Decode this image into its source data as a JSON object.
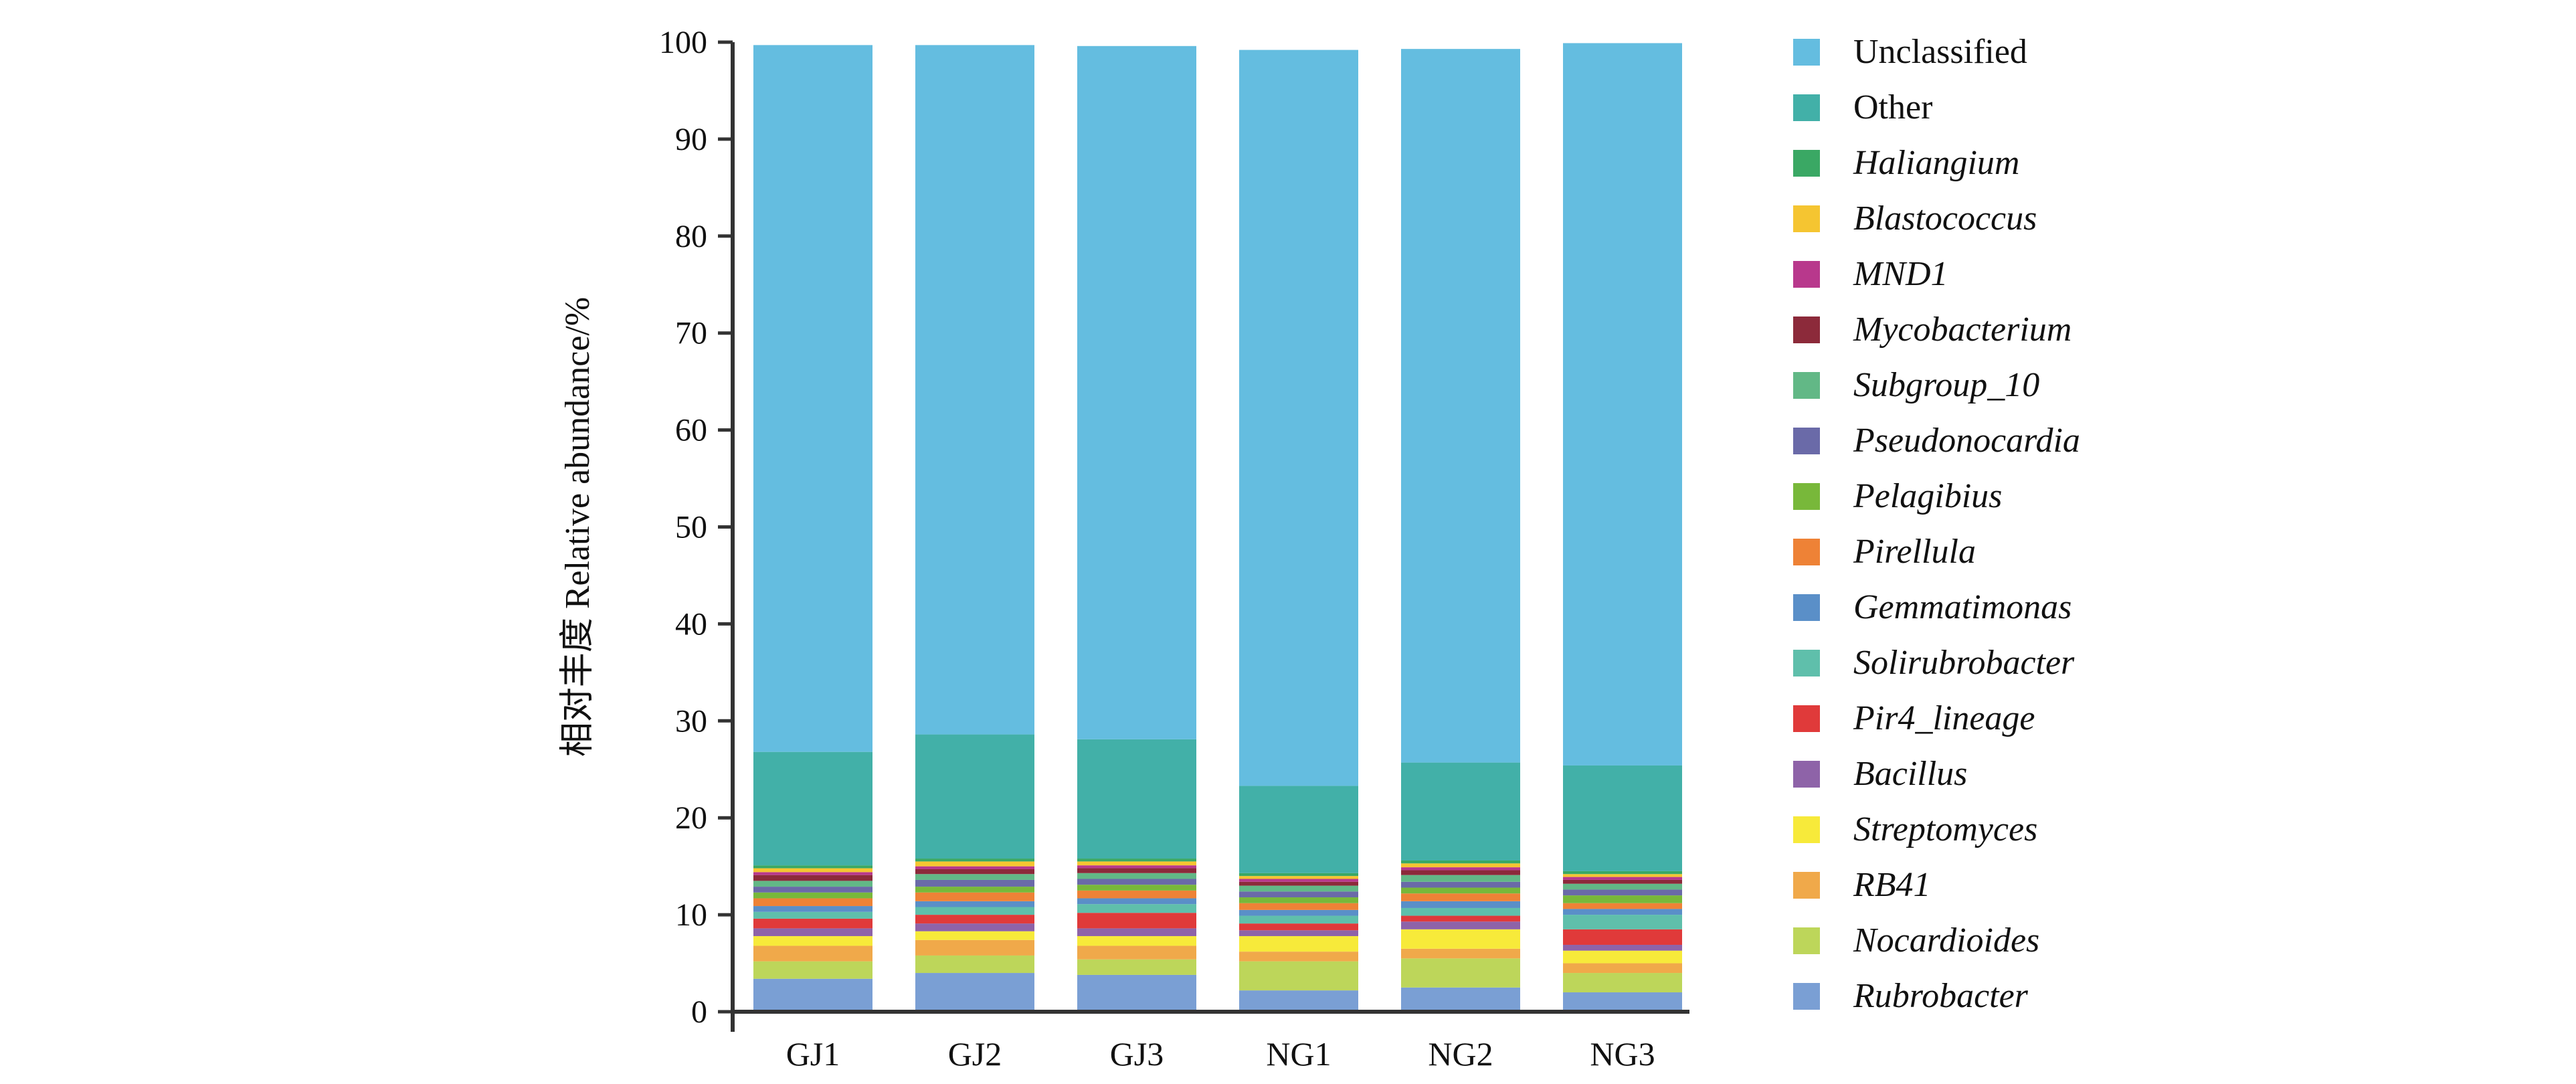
{
  "chart_data": {
    "type": "bar",
    "stacked": true,
    "title": "",
    "xlabel": "",
    "ylabel": "相对丰度 Relative abundance/%",
    "ylim": [
      0,
      100
    ],
    "yticks": [
      0,
      10,
      20,
      30,
      40,
      50,
      60,
      70,
      80,
      90,
      100
    ],
    "grid": false,
    "legend_position": "right",
    "categories": [
      "GJ1",
      "GJ2",
      "GJ3",
      "NG1",
      "NG2",
      "NG3"
    ],
    "series": [
      {
        "name": "Rubrobacter",
        "color": "#7a9fd4",
        "italic": true,
        "values": [
          3.4,
          4.0,
          3.8,
          2.2,
          2.5,
          2.0
        ]
      },
      {
        "name": "Nocardioides",
        "color": "#bdd65a",
        "italic": true,
        "values": [
          1.8,
          1.8,
          1.6,
          3.0,
          3.0,
          2.0
        ]
      },
      {
        "name": "RB41",
        "color": "#f0a94a",
        "italic": true,
        "values": [
          1.6,
          1.6,
          1.4,
          1.0,
          1.0,
          1.0
        ]
      },
      {
        "name": "Streptomyces",
        "color": "#f7ea3a",
        "italic": true,
        "values": [
          1.0,
          0.9,
          1.0,
          1.6,
          2.0,
          1.3
        ]
      },
      {
        "name": "Bacillus",
        "color": "#8e63a8",
        "italic": true,
        "values": [
          0.8,
          0.8,
          0.8,
          0.6,
          0.8,
          0.6
        ]
      },
      {
        "name": "Pir4_lineage",
        "color": "#e03a3a",
        "italic": true,
        "values": [
          1.0,
          0.9,
          1.6,
          0.7,
          0.6,
          1.6
        ]
      },
      {
        "name": "Solirubrobacter",
        "color": "#5fbfab",
        "italic": true,
        "values": [
          0.7,
          0.8,
          0.9,
          0.8,
          0.8,
          1.5
        ]
      },
      {
        "name": "Gemmatimonas",
        "color": "#5a8fc8",
        "italic": true,
        "values": [
          0.6,
          0.6,
          0.6,
          0.6,
          0.7,
          0.6
        ]
      },
      {
        "name": "Pirellula",
        "color": "#ee8236",
        "italic": true,
        "values": [
          0.8,
          0.9,
          0.8,
          0.7,
          0.8,
          0.6
        ]
      },
      {
        "name": "Pelagibius",
        "color": "#78b83a",
        "italic": true,
        "values": [
          0.6,
          0.6,
          0.6,
          0.6,
          0.6,
          0.8
        ]
      },
      {
        "name": "Pseudonocardia",
        "color": "#6a6aa8",
        "italic": true,
        "values": [
          0.6,
          0.7,
          0.6,
          0.6,
          0.6,
          0.6
        ]
      },
      {
        "name": "Subgroup_10",
        "color": "#62b886",
        "italic": true,
        "values": [
          0.6,
          0.6,
          0.6,
          0.6,
          0.7,
          0.6
        ]
      },
      {
        "name": "Mycobacterium",
        "color": "#8c2a3a",
        "italic": true,
        "values": [
          0.6,
          0.5,
          0.5,
          0.4,
          0.5,
          0.4
        ]
      },
      {
        "name": "MND1",
        "color": "#b8388c",
        "italic": true,
        "values": [
          0.3,
          0.3,
          0.3,
          0.3,
          0.3,
          0.3
        ]
      },
      {
        "name": "Blastococcus",
        "color": "#f5c531",
        "italic": true,
        "values": [
          0.4,
          0.5,
          0.4,
          0.3,
          0.4,
          0.3
        ]
      },
      {
        "name": "Haliangium",
        "color": "#3aa864",
        "italic": true,
        "values": [
          0.3,
          0.3,
          0.3,
          0.3,
          0.3,
          0.3
        ]
      },
      {
        "name": "Other",
        "color": "#42b0a8",
        "italic": false,
        "values": [
          11.7,
          12.8,
          12.3,
          9.0,
          10.1,
          10.9
        ]
      },
      {
        "name": "Unclassified",
        "color": "#64bde0",
        "italic": false,
        "values": [
          72.9,
          71.1,
          71.5,
          75.9,
          73.6,
          74.5
        ]
      }
    ]
  }
}
